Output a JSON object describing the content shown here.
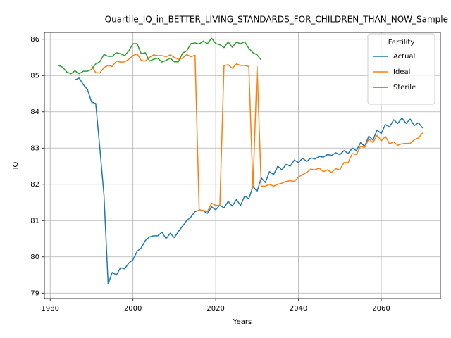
{
  "chart_data": {
    "type": "line",
    "title": "Quartile_IQ_in_BETTER_LIVING_STANDARDS_FOR_CHILDREN_THAN_NOW_Sample",
    "xlabel": "Years",
    "ylabel": "IQ",
    "legend_title": "Fertility",
    "legend": "upper right",
    "grid": true,
    "x": [
      1982,
      1983,
      1984,
      1985,
      1986,
      1987,
      1988,
      1989,
      1990,
      1991,
      1992,
      1993,
      1994,
      1995,
      1996,
      1997,
      1998,
      1999,
      2000,
      2001,
      2002,
      2003,
      2004,
      2005,
      2006,
      2007,
      2008,
      2009,
      2010,
      2011,
      2012,
      2013,
      2014,
      2015,
      2016,
      2017,
      2018,
      2019,
      2020,
      2021,
      2022,
      2023,
      2024,
      2025,
      2026,
      2027,
      2028,
      2029,
      2030,
      2031,
      2032,
      2033,
      2034,
      2035,
      2036,
      2037,
      2038,
      2039,
      2040,
      2041,
      2042,
      2043,
      2044,
      2045,
      2046,
      2047,
      2048,
      2049,
      2050,
      2051,
      2052,
      2053,
      2054,
      2055,
      2056,
      2057,
      2058,
      2059,
      2060,
      2061,
      2062,
      2063,
      2064,
      2065,
      2066,
      2067,
      2068,
      2069,
      2070
    ],
    "series": [
      {
        "name": "Actual",
        "color": "#1f77b4",
        "values": [
          null,
          null,
          null,
          null,
          84.88,
          84.93,
          84.75,
          84.62,
          84.27,
          84.23,
          83.0,
          81.7,
          79.25,
          79.57,
          79.5,
          79.7,
          79.67,
          79.83,
          79.92,
          80.15,
          80.25,
          80.45,
          80.55,
          80.58,
          80.58,
          80.68,
          80.5,
          80.65,
          80.53,
          80.7,
          80.85,
          81.0,
          81.1,
          81.25,
          81.28,
          81.27,
          81.2,
          81.38,
          81.3,
          81.43,
          81.35,
          81.53,
          81.4,
          81.58,
          81.42,
          81.68,
          81.6,
          81.95,
          81.8,
          82.18,
          82.05,
          82.35,
          82.27,
          82.5,
          82.4,
          82.55,
          82.5,
          82.67,
          82.6,
          82.72,
          82.63,
          82.73,
          82.7,
          82.77,
          82.75,
          82.82,
          82.8,
          82.87,
          82.82,
          82.93,
          82.85,
          83.0,
          82.93,
          83.15,
          83.05,
          83.33,
          83.22,
          83.5,
          83.4,
          83.65,
          83.58,
          83.78,
          83.68,
          83.83,
          83.68,
          83.8,
          83.62,
          83.7,
          83.55
        ]
      },
      {
        "name": "Ideal",
        "color": "#ff7f0e",
        "values": [
          null,
          null,
          null,
          null,
          null,
          null,
          null,
          null,
          85.28,
          85.08,
          85.07,
          85.22,
          85.28,
          85.25,
          85.4,
          85.37,
          85.38,
          85.45,
          85.55,
          85.6,
          85.42,
          85.4,
          85.5,
          85.57,
          85.55,
          85.55,
          85.52,
          85.57,
          85.5,
          85.45,
          85.48,
          85.58,
          85.52,
          85.56,
          81.3,
          81.28,
          81.25,
          81.48,
          81.42,
          81.42,
          85.27,
          85.3,
          85.2,
          85.32,
          85.28,
          85.28,
          85.25,
          81.9,
          85.25,
          81.95,
          81.95,
          82.0,
          81.95,
          82.0,
          82.03,
          82.08,
          82.1,
          82.08,
          82.2,
          82.27,
          82.33,
          82.42,
          82.4,
          82.45,
          82.35,
          82.4,
          82.33,
          82.43,
          82.4,
          82.6,
          82.6,
          82.85,
          82.82,
          83.05,
          83.02,
          83.25,
          83.15,
          83.35,
          83.2,
          83.32,
          83.12,
          83.17,
          83.08,
          83.12,
          83.13,
          83.13,
          83.23,
          83.28,
          83.42
        ]
      },
      {
        "name": "Sterile",
        "color": "#2ca02c",
        "values": [
          85.28,
          85.23,
          85.1,
          85.05,
          85.13,
          85.05,
          85.12,
          85.12,
          85.17,
          85.32,
          85.38,
          85.58,
          85.53,
          85.53,
          85.63,
          85.6,
          85.55,
          85.68,
          85.88,
          85.88,
          85.6,
          85.63,
          85.4,
          85.45,
          85.48,
          85.37,
          85.42,
          85.48,
          85.38,
          85.38,
          85.62,
          85.68,
          85.88,
          85.9,
          85.87,
          85.95,
          85.88,
          86.03,
          85.88,
          85.85,
          85.77,
          85.93,
          85.78,
          85.92,
          85.88,
          85.93,
          85.75,
          85.63,
          85.57,
          85.43,
          null,
          null,
          null,
          null,
          null,
          null,
          null,
          null,
          null,
          null,
          null,
          null,
          null,
          null,
          null,
          null,
          null,
          null,
          null,
          null,
          null,
          null,
          null,
          null,
          null,
          null,
          null,
          null,
          null,
          null,
          null,
          null,
          null,
          null,
          null,
          null,
          null,
          null,
          null
        ]
      }
    ],
    "xlim": [
      1978.6,
      2074.3
    ],
    "xticks": [
      1980,
      2000,
      2020,
      2040,
      2060
    ],
    "ylim": [
      78.85,
      86.19
    ],
    "yticks": [
      79,
      80,
      81,
      82,
      83,
      84,
      85,
      86
    ]
  }
}
